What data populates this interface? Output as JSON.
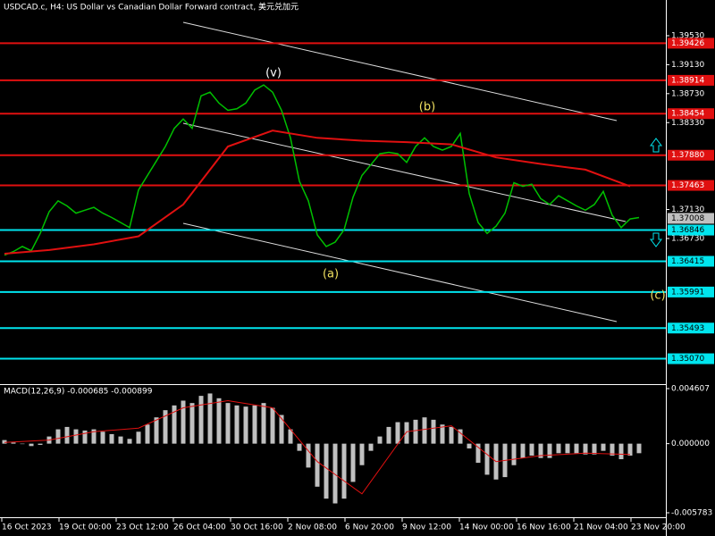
{
  "chart_data": [
    {
      "type": "line",
      "title": "USDCAD.c, H4:  US Dollar vs Canadian Dollar Forward contract, 美元兑加元",
      "ylim": [
        1.34719,
        1.40023
      ],
      "yticks": [
        {
          "value": 1.3953,
          "label": "1.39530"
        },
        {
          "value": 1.3913,
          "label": "1.39130"
        },
        {
          "value": 1.3873,
          "label": "1.38730"
        },
        {
          "value": 1.3833,
          "label": "1.38330"
        },
        {
          "value": 1.3713,
          "label": "1.37130"
        },
        {
          "value": 1.3673,
          "label": "1.36730"
        }
      ],
      "x_labels": [
        "16 Oct 2023",
        "19 Oct 00:00",
        "23 Oct 12:00",
        "26 Oct 04:00",
        "30 Oct 16:00",
        "2 Nov 08:00",
        "6 Nov 20:00",
        "9 Nov 12:00",
        "14 Nov 00:00",
        "16 Nov 16:00",
        "21 Nov 04:00",
        "23 Nov 20:00"
      ],
      "series": [
        {
          "color": "#00c000",
          "values": [
            1.365,
            1.3655,
            1.3662,
            1.3656,
            1.368,
            1.371,
            1.3725,
            1.3718,
            1.3708,
            1.3712,
            1.3716,
            1.3708,
            1.3702,
            1.3695,
            1.3688,
            1.374,
            1.376,
            1.378,
            1.38,
            1.3825,
            1.3838,
            1.3825,
            1.387,
            1.3875,
            1.386,
            1.385,
            1.3852,
            1.386,
            1.3878,
            1.3885,
            1.3875,
            1.385,
            1.3812,
            1.3752,
            1.3725,
            1.3678,
            1.3662,
            1.3668,
            1.3685,
            1.373,
            1.376,
            1.3775,
            1.379,
            1.3792,
            1.379,
            1.3778,
            1.38,
            1.3812,
            1.38,
            1.3795,
            1.38,
            1.3818,
            1.3735,
            1.3695,
            1.368,
            1.369,
            1.3708,
            1.375,
            1.3745,
            1.3748,
            1.3728,
            1.372,
            1.3732,
            1.3725,
            1.3718,
            1.3712,
            1.372,
            1.3738,
            1.3705,
            1.3688,
            1.37,
            1.3702
          ]
        },
        {
          "color": "#e01010",
          "values": [
            1.3652,
            1.3657,
            1.3665,
            1.3676,
            1.372,
            1.38,
            1.3822,
            1.3812,
            1.3808,
            1.3806,
            1.3803,
            1.3785,
            1.3776,
            1.3768,
            1.3745
          ]
        }
      ],
      "levels": [
        {
          "value": 1.39426,
          "label": "1.39426",
          "color": "#e01010"
        },
        {
          "value": 1.38914,
          "label": "1.38914",
          "color": "#e01010"
        },
        {
          "value": 1.38454,
          "label": "1.38454",
          "color": "#e01010"
        },
        {
          "value": 1.3788,
          "label": "1.37880",
          "color": "#e01010"
        },
        {
          "value": 1.37463,
          "label": "1.37463",
          "color": "#e01010"
        },
        {
          "value": 1.36846,
          "label": "1.36846",
          "color": "#00e5ee"
        },
        {
          "value": 1.36415,
          "label": "1.36415",
          "color": "#00e5ee"
        },
        {
          "value": 1.35991,
          "label": "1.35991",
          "color": "#00e5ee"
        },
        {
          "value": 1.35493,
          "label": "1.35493",
          "color": "#00e5ee"
        },
        {
          "value": 1.3507,
          "label": "1.35070",
          "color": "#00e5ee"
        }
      ],
      "current_price": {
        "value": 1.37008,
        "label": "1.37008"
      },
      "annotations": [
        "(v)",
        "(b)",
        "(a)",
        "(c)"
      ]
    },
    {
      "type": "bar",
      "title": "MACD(12,26,9) -0.000685 -0.000899",
      "ylim": [
        -0.005783,
        0.004607
      ],
      "yticks": [
        0.004607,
        {
          "value": 0,
          "label": "0.000000"
        },
        -0.005783
      ],
      "color": "#c0c0c0",
      "values": [
        0.0003,
        0.0001,
        0.0,
        -0.0002,
        -0.0001,
        0.0006,
        0.0012,
        0.0014,
        0.0012,
        0.0011,
        0.0012,
        0.001,
        0.0008,
        0.0006,
        0.0004,
        0.001,
        0.0016,
        0.0022,
        0.0028,
        0.0032,
        0.0036,
        0.0034,
        0.004,
        0.0042,
        0.0038,
        0.0034,
        0.0032,
        0.0031,
        0.0032,
        0.0034,
        0.003,
        0.0024,
        0.0012,
        -0.0006,
        -0.002,
        -0.0036,
        -0.0046,
        -0.005,
        -0.0046,
        -0.0032,
        -0.0018,
        -0.0006,
        0.0006,
        0.0014,
        0.0018,
        0.0018,
        0.002,
        0.0022,
        0.002,
        0.0016,
        0.0014,
        0.0012,
        -0.0004,
        -0.0016,
        -0.0026,
        -0.003,
        -0.0028,
        -0.0018,
        -0.0012,
        -0.001,
        -0.0012,
        -0.0012,
        -0.0008,
        -0.0008,
        -0.0008,
        -0.0009,
        -0.0009,
        -0.0006,
        -0.001,
        -0.0013,
        -0.001,
        -0.0008
      ],
      "signal": {
        "color": "#e01010",
        "values": [
          0.0001,
          0.0003,
          0.001,
          0.0013,
          0.003,
          0.0036,
          0.003,
          -0.0015,
          -0.0042,
          0.001,
          0.0015,
          -0.0015,
          -0.001,
          -0.0008,
          -0.0009
        ]
      }
    }
  ]
}
